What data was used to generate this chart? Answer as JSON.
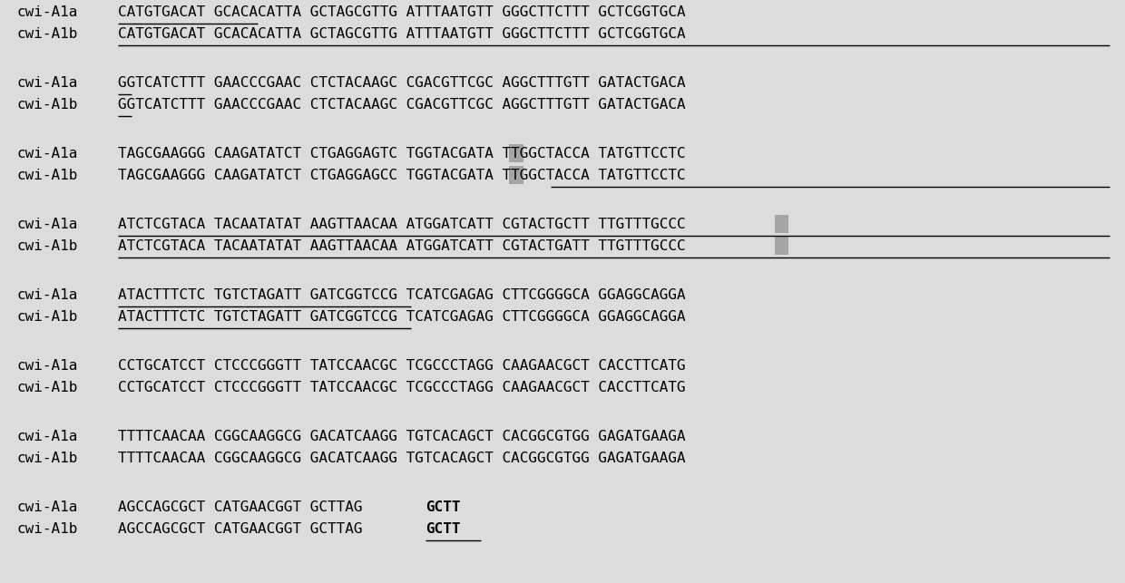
{
  "bg_color": "#dcdcdc",
  "label_color": "#000000",
  "seq_color": "#000000",
  "font_family": "DejaVu Sans Mono",
  "label_fontsize": 11.5,
  "seq_fontsize": 11.5,
  "rows": [
    {
      "label_a": "cwi-A1a",
      "label_b": "cwi-A1b",
      "seq_a": "CATGTGACAT GCACACATTA GCTAGCGTTG ATTTAATGTT GGGCTTCTTT GCTCGGTGCA",
      "seq_b": "CATGTGACAT GCACACATTA GCTAGCGTTG ATTTAATGTT GGGCTTCTTT GCTCGGTGCA",
      "underline_a": [
        [
          0,
          10
        ]
      ],
      "underline_b": [
        [
          0,
          71
        ]
      ],
      "highlight_a": [],
      "highlight_b": [],
      "bold_a": [],
      "bold_b": []
    },
    {
      "label_a": "cwi-A1a",
      "label_b": "cwi-A1b",
      "seq_a": "GGTCATCTTT GAACCCGAAC CTCTACAAGC CGACGTTCGC AGGCTTTGTT GATACTGACA",
      "seq_b": "GGTCATCTTT GAACCCGAAC CTCTACAAGC CGACGTTCGC AGGCTTTGTT GATACTGACA",
      "underline_a": [
        [
          0,
          1
        ]
      ],
      "underline_b": [
        [
          0,
          1
        ]
      ],
      "highlight_a": [],
      "highlight_b": [],
      "bold_a": [],
      "bold_b": []
    },
    {
      "label_a": "cwi-A1a",
      "label_b": "cwi-A1b",
      "seq_a": "TAGCGAAGGG CAAGATATCT CTGAGGAGTC TGGTACGATA TTGGCTACCA TATGTTCCTC",
      "seq_b": "TAGCGAAGGG CAAGATATCT CTGAGGAGCC TGGTACGATA TTGGCTACCA TATGTTCCTC",
      "underline_a": [],
      "underline_b": [
        [
          31,
          71
        ]
      ],
      "highlight_a": [
        28
      ],
      "highlight_b": [
        28
      ],
      "bold_a": [],
      "bold_b": []
    },
    {
      "label_a": "cwi-A1a",
      "label_b": "cwi-A1b",
      "seq_a": "ATCTCGTACA TACAATATAT AAGTTAACAA ATGGATCATT CGTACTGCTT TTGTTTGCCC",
      "seq_b": "ATCTCGTACA TACAATATAT AAGTTAACAA ATGGATCATT CGTACTGATT TTGTTTGCCC",
      "underline_a": [
        [
          0,
          71
        ]
      ],
      "underline_b": [
        [
          0,
          71
        ]
      ],
      "highlight_a": [
        47
      ],
      "highlight_b": [
        47
      ],
      "bold_a": [],
      "bold_b": []
    },
    {
      "label_a": "cwi-A1a",
      "label_b": "cwi-A1b",
      "seq_a": "ATACTTTCTC TGTCTAGATT GATCGGTCCG TCATCGAGAG CTTCGGGGCA GGAGGCAGGA",
      "seq_b": "ATACTTTCTC TGTCTAGATT GATCGGTCCG TCATCGAGAG CTTCGGGGCA GGAGGCAGGA",
      "underline_a": [
        [
          0,
          21
        ]
      ],
      "underline_b": [
        [
          0,
          21
        ]
      ],
      "highlight_a": [],
      "highlight_b": [],
      "bold_a": [],
      "bold_b": []
    },
    {
      "label_a": "cwi-A1a",
      "label_b": "cwi-A1b",
      "seq_a": "CCTGCATCCT CTCCCGGGTT TATCCAACGC TCGCCCTAGG CAAGAACGCT CACCTTCATG",
      "seq_b": "CCTGCATCCT CTCCCGGGTT TATCCAACGC TCGCCCTAGG CAAGAACGCT CACCTTCATG",
      "underline_a": [],
      "underline_b": [],
      "highlight_a": [],
      "highlight_b": [],
      "bold_a": [],
      "bold_b": []
    },
    {
      "label_a": "cwi-A1a",
      "label_b": "cwi-A1b",
      "seq_a": "TTTTCAACAA CGGCAAGGCG GACATCAAGG TGTCACAGCT CACGGCGTGG GAGATGAAGA",
      "seq_b": "TTTTCAACAA CGGCAAGGCG GACATCAAGG TGTCACAGCT CACGGCGTGG GAGATGAAGA",
      "underline_a": [],
      "underline_b": [],
      "highlight_a": [],
      "highlight_b": [],
      "bold_a": [],
      "bold_b": []
    },
    {
      "label_a": "cwi-A1a",
      "label_b": "cwi-A1b",
      "seq_a": "AGCCAGCGCT CATGAACGGT GCTTAG",
      "seq_b": "AGCCAGCGCT CATGAACGGT GCTTAG",
      "underline_a": [],
      "underline_b": [
        [
          22,
          26
        ]
      ],
      "highlight_a": [],
      "highlight_b": [],
      "bold_a": [
        [
          22,
          26
        ]
      ],
      "bold_b": [
        [
          22,
          26
        ]
      ]
    }
  ]
}
